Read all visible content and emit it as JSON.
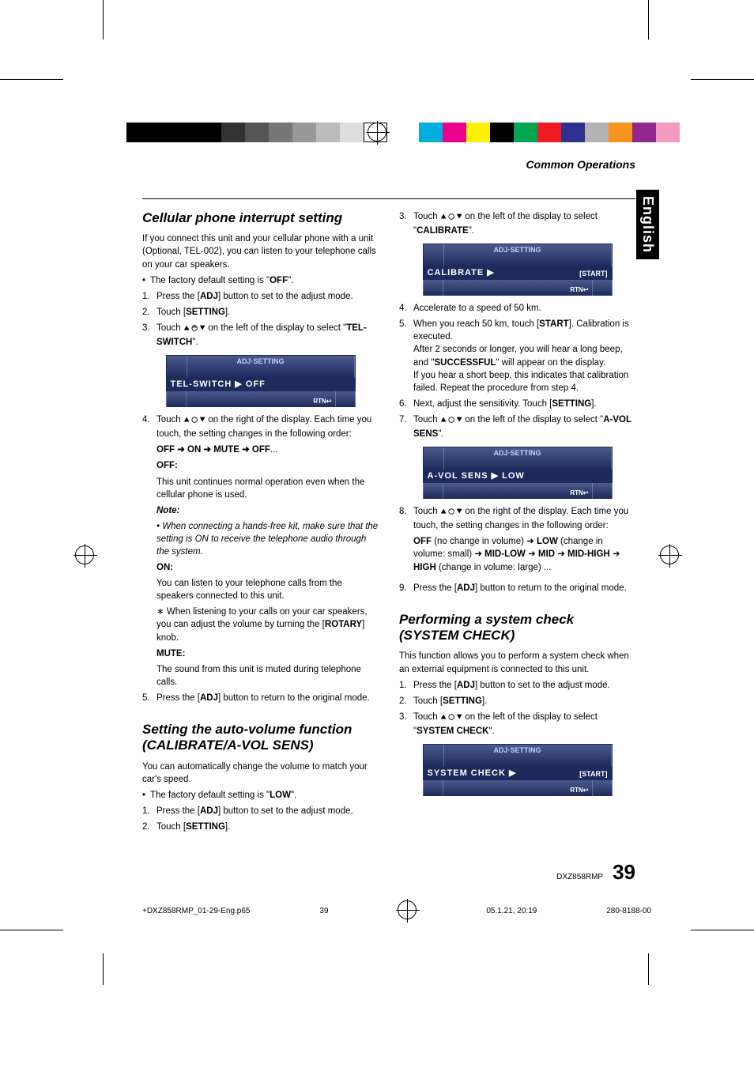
{
  "header": {
    "section": "Common Operations"
  },
  "sidetab": "English",
  "registration_colors": {
    "left": [
      "#000",
      "#000",
      "#000",
      "#000",
      "#333",
      "#555",
      "#777",
      "#999",
      "#bbb",
      "#ddd",
      "#fff"
    ],
    "right": [
      "#00aee0",
      "#ec008c",
      "#fff200",
      "#000",
      "#00a651",
      "#ed1c24",
      "#2e3192",
      "#b3b3b3",
      "#f7941d",
      "#92278f",
      "#f49ac1"
    ]
  },
  "left": {
    "h1": "Cellular phone interrupt setting",
    "intro": "If you connect this unit and your cellular phone with a unit (Optional, TEL-002), you can listen to your telephone calls on your car speakers.",
    "bullet1_a": "The factory default setting is \"",
    "bullet1_b": "OFF",
    "bullet1_c": "\".",
    "step1_a": "Press the [",
    "step1_b": "ADJ",
    "step1_c": "] button to set to the adjust mode.",
    "step2_a": "Touch [",
    "step2_b": "SETTING",
    "step2_c": "].",
    "step3_a": "Touch ",
    "step3_b": " on the left of the display to select \"",
    "step3_c": "TEL-SWITCH",
    "step3_d": "\".",
    "lcd1": {
      "title": "ADJ·SETTING",
      "main": "TEL-SWITCH  ▶  OFF",
      "rtn": "RTN↩"
    },
    "step4_a": "Touch ",
    "step4_b": " on the right of the display. Each time you touch, the setting changes in the following order:",
    "cycle": "OFF ➜ ON ➜ MUTE ➜ OFF",
    "cycle_dots": "...",
    "off_h": "OFF:",
    "off_t": "This unit continues normal operation even when the cellular phone is used.",
    "note_h": "Note:",
    "note_t": "When connecting a hands-free kit, make sure that the setting is ON to receive the telephone audio through the system.",
    "on_h": "ON:",
    "on_t": "You can listen to your telephone calls from the speakers connected to this unit.",
    "on_sub_a": "When listening to your calls on your car speakers, you can adjust the volume by turning the [",
    "on_sub_b": "ROTARY",
    "on_sub_c": "] knob.",
    "mute_h": "MUTE:",
    "mute_t": "The sound from this unit is muted during telephone calls.",
    "step5_a": "Press the [",
    "step5_b": "ADJ",
    "step5_c": "] button to return to the original mode.",
    "h2": "Setting the auto-volume function\n(CALIBRATE/A-VOL SENS)",
    "intro2": "You can automatically change the volume to match your car's speed.",
    "bullet2_a": "The factory default setting is \"",
    "bullet2_b": "LOW",
    "bullet2_c": "\".",
    "s2step1_a": "Press the [",
    "s2step1_b": "ADJ",
    "s2step1_c": "] button to set to the adjust mode.",
    "s2step2_a": "Touch [",
    "s2step2_b": "SETTING",
    "s2step2_c": "]."
  },
  "right": {
    "step3_a": "Touch ",
    "step3_b": " on the left of the display to select \"",
    "step3_c": "CALIBRATE",
    "step3_d": "\".",
    "lcd2": {
      "title": "ADJ·SETTING",
      "main": "CALIBRATE   ▶",
      "start": "[START]",
      "rtn": "RTN↩"
    },
    "step4": "Accelerate to a speed of 50 km.",
    "step5_a": "When you reach 50 km, touch [",
    "step5_b": "START",
    "step5_c": "]. Calibration is executed.",
    "step5_d": "After 2 seconds or longer, you will hear a long beep, and \"",
    "step5_e": "SUCCESSFUL",
    "step5_f": "\" will appear on the display.",
    "step5_g": "If you hear a short beep, this indicates that calibration failed. Repeat the procedure from step 4.",
    "step6_a": "Next, adjust the sensitivity. Touch [",
    "step6_b": "SETTING",
    "step6_c": "].",
    "step7_a": "Touch ",
    "step7_b": " on the left of the display to select \"",
    "step7_c": "A-VOL SENS",
    "step7_d": "\".",
    "lcd3": {
      "title": "ADJ·SETTING",
      "main": "A-VOL SENS  ▶  LOW",
      "rtn": "RTN↩"
    },
    "step8_a": "Touch ",
    "step8_b": " on the right of the display. Each time you touch, the setting changes in the following order:",
    "cycle2_a": "OFF",
    "cycle2_b": " (no change in volume) ➜ ",
    "cycle2_c": "LOW",
    "cycle2_d": " (change in volume: small) ➜ ",
    "cycle2_e": "MID-LOW",
    "cycle2_f": " ➜ ",
    "cycle2_g": "MID",
    "cycle2_h": " ➜ ",
    "cycle2_i": "MID-HIGH",
    "cycle2_j": " ➜ ",
    "cycle2_k": "HIGH",
    "cycle2_l": " (change in volume: large) ...",
    "step9_a": "Press the [",
    "step9_b": "ADJ",
    "step9_c": "] button to return to the original mode.",
    "h3": "Performing a system check (SYSTEM CHECK)",
    "intro3": "This function allows you to perform a system check when an external equipment is connected to this unit.",
    "s3step1_a": "Press the [",
    "s3step1_b": "ADJ",
    "s3step1_c": "] button to set to the adjust mode.",
    "s3step2_a": "Touch [",
    "s3step2_b": "SETTING",
    "s3step2_c": "].",
    "s3step3_a": "Touch ",
    "s3step3_b": " on the left of the display to select \"",
    "s3step3_c": "SYSTEM CHECK",
    "s3step3_d": "\".",
    "lcd4": {
      "title": "ADJ·SETTING",
      "main": "SYSTEM  CHECK  ▶",
      "start": "[START]",
      "rtn": "RTN↩"
    }
  },
  "footer": {
    "model": "DXZ858RMP",
    "page": "39"
  },
  "printinfo": {
    "file": "+DXZ858RMP_01-29-Eng.p65",
    "pg": "39",
    "ts": "05.1.21, 20:19",
    "code": "280-8188-00"
  }
}
